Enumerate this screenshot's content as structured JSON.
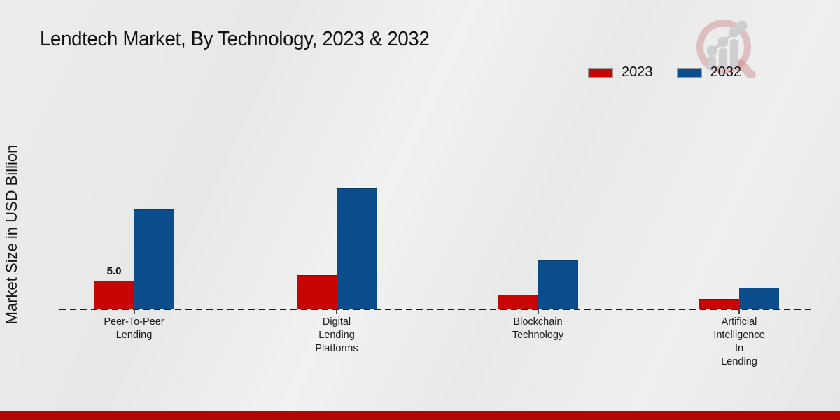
{
  "header": {
    "title": "Lendtech Market, By Technology, 2023 & 2032"
  },
  "legend": {
    "position": "top-right",
    "items": [
      {
        "label": "2023",
        "color": "#c80505"
      },
      {
        "label": "2032",
        "color": "#0b4d8b"
      }
    ]
  },
  "chart_data": {
    "type": "bar",
    "title": "Lendtech Market, By Technology, 2023 & 2032",
    "xlabel": "",
    "ylabel": "Market Size in USD Billion",
    "categories": [
      "Peer-To-Peer\nLending",
      "Digital\nLending\nPlatforms",
      "Blockchain\nTechnology",
      "Artificial\nIntelligence\nIn\nLending"
    ],
    "series": [
      {
        "name": "2023",
        "color": "#c80505",
        "values": [
          5.0,
          6.0,
          2.6,
          1.8
        ],
        "point_labels": [
          "5.0",
          "",
          "",
          ""
        ]
      },
      {
        "name": "2032",
        "color": "#0b4d8b",
        "values": [
          17.4,
          21.1,
          8.5,
          3.8
        ],
        "point_labels": [
          "",
          "",
          "",
          ""
        ]
      }
    ],
    "ylim": [
      0,
      22
    ],
    "grid": false,
    "axis_style": "dashed-baseline-only",
    "legend_position": "top-right"
  },
  "branding": {
    "logo_icon": "magnifier-growth-chart-logo",
    "accent_strip_color": "#b30606"
  }
}
